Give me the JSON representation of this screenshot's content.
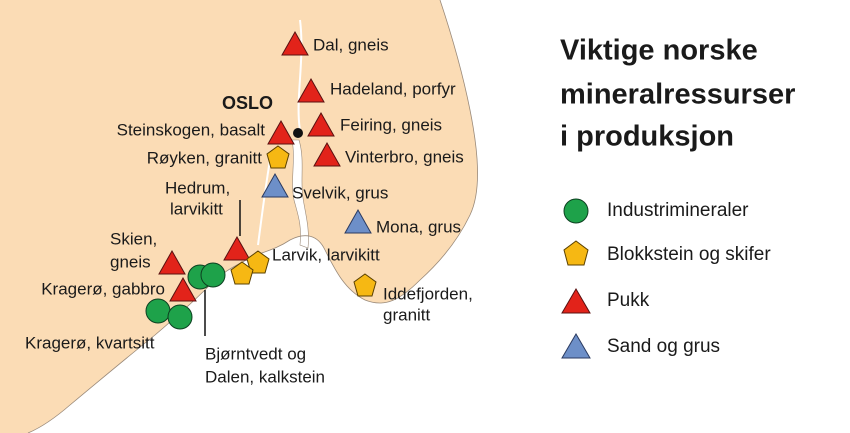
{
  "title": [
    "Viktige norske",
    "mineralressurser",
    "i produksjon"
  ],
  "city": "OSLO",
  "legend": [
    "Industrimineraler",
    "Blokkstein og skifer",
    "Pukk",
    "Sand og grus"
  ],
  "sites": [
    [
      "Dal, gneis"
    ],
    [
      "Hadeland, porfyr"
    ],
    [
      "Steinskogen, basalt"
    ],
    [
      "Feiring, gneis"
    ],
    [
      "Røyken, granitt"
    ],
    [
      "Vinterbro, gneis"
    ],
    [
      "Hedrum,",
      "larvikitt"
    ],
    [
      "Svelvik, grus"
    ],
    [
      "Mona, grus"
    ],
    [
      "Skien,",
      "gneis"
    ],
    [
      "Larvik, larvikitt"
    ],
    [
      "Kragerø, gabbro"
    ],
    [
      "Iddefjorden,",
      "granitt"
    ],
    [
      "Kragerø, kvartsitt"
    ],
    [
      "Bjørntvedt og",
      "Dalen, kalkstein"
    ]
  ]
}
